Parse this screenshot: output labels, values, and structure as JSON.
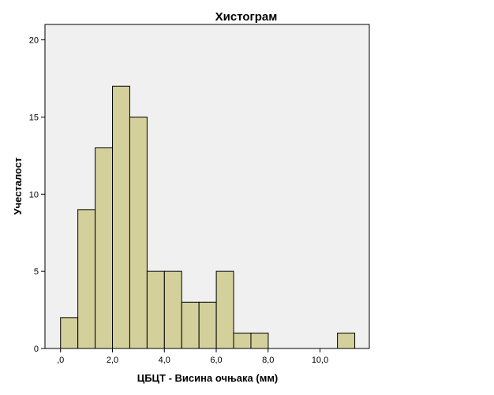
{
  "chart_data": {
    "type": "bar",
    "title": "Хистограм",
    "xlabel": "ЦБЦТ - Висина очњака (мм)",
    "ylabel": "Учесталост",
    "bin_width": 0.667,
    "bin_start": 0,
    "values": [
      2,
      9,
      13,
      17,
      15,
      5,
      5,
      3,
      3,
      5,
      1,
      1,
      0,
      0,
      0,
      0,
      1
    ],
    "xlim": [
      -0.6,
      11.9
    ],
    "ylim": [
      0,
      21
    ],
    "xticks": [
      0,
      2,
      4,
      6,
      8,
      10
    ],
    "xtick_labels": [
      ",0",
      "2,0",
      "4,0",
      "6,0",
      "8,0",
      "10,0"
    ],
    "yticks": [
      0,
      5,
      10,
      15,
      20
    ],
    "ytick_labels": [
      "0",
      "5",
      "10",
      "15",
      "20"
    ],
    "grid": false,
    "colors": {
      "bar_fill": "#d4d09c",
      "bar_stroke": "#000000",
      "plot_background": "#f0f0f0",
      "plot_border": "#000000"
    }
  }
}
